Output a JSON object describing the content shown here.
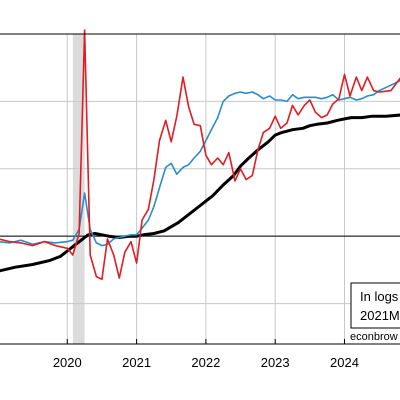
{
  "chart_data": {
    "type": "line",
    "x_range": [
      2019.0,
      2024.83
    ],
    "ylim": [
      -3,
      20
    ],
    "y_ticks": [
      0,
      5,
      10,
      15,
      20
    ],
    "x_ticks": [
      {
        "value": 2020.0,
        "label": "2020"
      },
      {
        "value": 2021.0,
        "label": "2021"
      },
      {
        "value": 2022.0,
        "label": "2022"
      },
      {
        "value": 2023.0,
        "label": "2023"
      },
      {
        "value": 2024.0,
        "label": "2024"
      }
    ],
    "reference_line": 5,
    "recession_shading": [
      2020.08,
      2020.25
    ],
    "grid": true,
    "annotation": {
      "line1": "In logs",
      "line2": "2021M"
    },
    "credit": "econbrow",
    "series": [
      {
        "color": "#000000",
        "width": 3,
        "x": [
          2019.0,
          2019.25,
          2019.5,
          2019.75,
          2019.9,
          2020.0,
          2020.1,
          2020.2,
          2020.3,
          2020.4,
          2020.5,
          2020.6,
          2020.75,
          2020.9,
          2021.0,
          2021.1,
          2021.25,
          2021.4,
          2021.5,
          2021.6,
          2021.75,
          2021.9,
          2022.0,
          2022.1,
          2022.25,
          2022.4,
          2022.5,
          2022.6,
          2022.75,
          2022.9,
          2023.0,
          2023.1,
          2023.25,
          2023.4,
          2023.5,
          2023.6,
          2023.75,
          2023.9,
          2024.0,
          2024.1,
          2024.25,
          2024.4,
          2024.5,
          2024.6,
          2024.83
        ],
        "values": [
          2.4,
          2.7,
          2.9,
          3.2,
          3.5,
          3.9,
          4.3,
          4.7,
          5.1,
          5.2,
          5.1,
          5.0,
          4.9,
          5.0,
          5.0,
          5.1,
          5.2,
          5.4,
          5.7,
          6.0,
          6.6,
          7.2,
          7.6,
          8.0,
          8.8,
          9.5,
          10.2,
          10.7,
          11.4,
          12.0,
          12.5,
          12.7,
          12.9,
          13.0,
          13.2,
          13.3,
          13.4,
          13.6,
          13.7,
          13.8,
          13.8,
          13.9,
          13.9,
          13.9,
          14.0
        ]
      },
      {
        "color": "#2b8ccc",
        "width": 1.6,
        "x": [
          2019.0,
          2019.17,
          2019.33,
          2019.5,
          2019.67,
          2019.83,
          2020.0,
          2020.08,
          2020.17,
          2020.25,
          2020.33,
          2020.42,
          2020.5,
          2020.58,
          2020.67,
          2020.75,
          2020.83,
          2020.92,
          2021.0,
          2021.08,
          2021.17,
          2021.25,
          2021.33,
          2021.42,
          2021.5,
          2021.58,
          2021.67,
          2021.75,
          2021.83,
          2021.92,
          2022.0,
          2022.08,
          2022.17,
          2022.25,
          2022.33,
          2022.42,
          2022.5,
          2022.58,
          2022.67,
          2022.75,
          2022.83,
          2022.92,
          2023.0,
          2023.08,
          2023.17,
          2023.25,
          2023.33,
          2023.42,
          2023.5,
          2023.58,
          2023.67,
          2023.75,
          2023.83,
          2023.92,
          2024.0,
          2024.08,
          2024.17,
          2024.25,
          2024.33,
          2024.42,
          2024.5,
          2024.67,
          2024.83
        ],
        "values": [
          4.6,
          4.5,
          4.7,
          4.4,
          4.6,
          4.5,
          4.6,
          4.7,
          5.5,
          8.2,
          5.5,
          4.5,
          4.3,
          4.4,
          4.8,
          4.9,
          5.0,
          5.1,
          5.1,
          5.6,
          6.2,
          7.2,
          8.6,
          10.1,
          10.4,
          9.6,
          10.1,
          10.3,
          10.8,
          11.3,
          12.1,
          12.9,
          13.8,
          15.0,
          15.4,
          15.6,
          15.7,
          15.6,
          15.7,
          15.5,
          15.2,
          15.4,
          15.1,
          15.1,
          15.0,
          15.5,
          15.2,
          15.3,
          15.3,
          15.3,
          15.2,
          15.3,
          15.5,
          15.1,
          15.2,
          15.3,
          15.1,
          15.2,
          15.4,
          15.5,
          15.8,
          16.2,
          16.6
        ]
      },
      {
        "color": "#e01c24",
        "width": 1.6,
        "x": [
          2019.0,
          2019.17,
          2019.33,
          2019.5,
          2019.67,
          2019.83,
          2020.0,
          2020.08,
          2020.17,
          2020.25,
          2020.33,
          2020.42,
          2020.5,
          2020.58,
          2020.67,
          2020.75,
          2020.83,
          2020.92,
          2021.0,
          2021.08,
          2021.17,
          2021.25,
          2021.33,
          2021.42,
          2021.5,
          2021.58,
          2021.67,
          2021.75,
          2021.83,
          2021.92,
          2022.0,
          2022.08,
          2022.17,
          2022.25,
          2022.33,
          2022.42,
          2022.5,
          2022.58,
          2022.67,
          2022.75,
          2022.83,
          2022.92,
          2023.0,
          2023.08,
          2023.17,
          2023.25,
          2023.33,
          2023.42,
          2023.5,
          2023.58,
          2023.67,
          2023.75,
          2023.83,
          2023.92,
          2024.0,
          2024.08,
          2024.17,
          2024.25,
          2024.33,
          2024.42,
          2024.5,
          2024.67,
          2024.83
        ],
        "values": [
          4.8,
          4.6,
          4.5,
          4.3,
          4.6,
          4.3,
          4.1,
          3.6,
          5.2,
          20.3,
          3.6,
          2.0,
          1.8,
          4.8,
          3.6,
          1.9,
          3.8,
          4.6,
          3.0,
          6.2,
          7.0,
          9.2,
          12.1,
          13.6,
          12.0,
          13.9,
          16.8,
          14.6,
          13.3,
          13.2,
          11.0,
          10.3,
          10.8,
          10.3,
          11.2,
          9.1,
          10.0,
          9.2,
          9.5,
          11.4,
          12.7,
          13.0,
          13.9,
          13.0,
          13.4,
          14.7,
          14.0,
          14.7,
          15.1,
          14.2,
          13.8,
          14.0,
          14.8,
          15.2,
          17.0,
          15.4,
          16.8,
          15.8,
          16.8,
          15.8,
          15.7,
          15.8,
          16.9
        ]
      }
    ]
  }
}
